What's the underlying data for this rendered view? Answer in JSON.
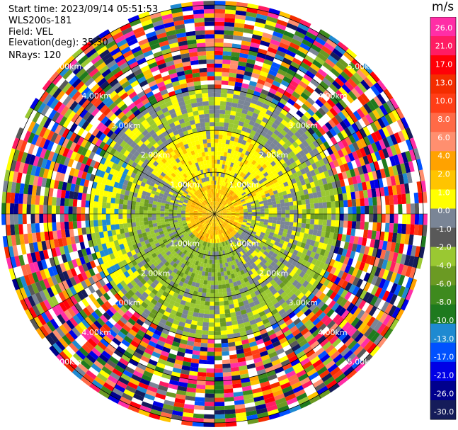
{
  "info": {
    "start_time": "Start time: 2023/09/14 05:51:53",
    "instrument": "WLS200s-181",
    "field": "Field: VEL",
    "elevation": "Elevation(deg): 35.30",
    "nrays": "NRays: 120"
  },
  "chart_data": {
    "type": "heatmap",
    "projection": "polar (PPI)",
    "field": "VEL",
    "units": "m/s",
    "nrays": 120,
    "elevation_deg": 35.3,
    "range_rings_km": [
      1.0,
      2.0,
      3.0,
      4.0,
      5.0
    ],
    "ring_labels": [
      "1.00km",
      "2.00km",
      "3.00km",
      "4.00km",
      "5.00km"
    ],
    "max_range_km": 5.1,
    "colorbar": {
      "unit": "m/s",
      "ticks": [
        "26.0",
        "21.0",
        "17.0",
        "13.0",
        "10.0",
        "8.0",
        "6.0",
        "4.0",
        "2.0",
        "1.0",
        "0.0",
        "-1.0",
        "-2.0",
        "-4.0",
        "-6.0",
        "-8.0",
        "-10.0",
        "-13.0",
        "-17.0",
        "-21.0",
        "-26.0",
        "-30.0"
      ],
      "colors": [
        "#ff2ea6",
        "#ff1c63",
        "#ff0008",
        "#f42d00",
        "#ff3e17",
        "#ff6a47",
        "#ff8f6f",
        "#ffa200",
        "#ffc400",
        "#ffff00",
        "#7a8596",
        "#595959",
        "#9ac832",
        "#6b9a23",
        "#3e8a1e",
        "#1e7a1e",
        "#1f8ad1",
        "#0051ff",
        "#0000e6",
        "#00008d",
        "#151c5a"
      ]
    },
    "pattern": {
      "inner_radius_km": 3.0,
      "outer_noise_start_km": 3.0,
      "description": "Near-field velocities within about 3 km: yellow (+2 to +4 m/s) to the north, olive/green (-2 to -6 m/s) to the south-west, grey (0 m/s) bands; beyond 3 km mostly noise."
    }
  }
}
